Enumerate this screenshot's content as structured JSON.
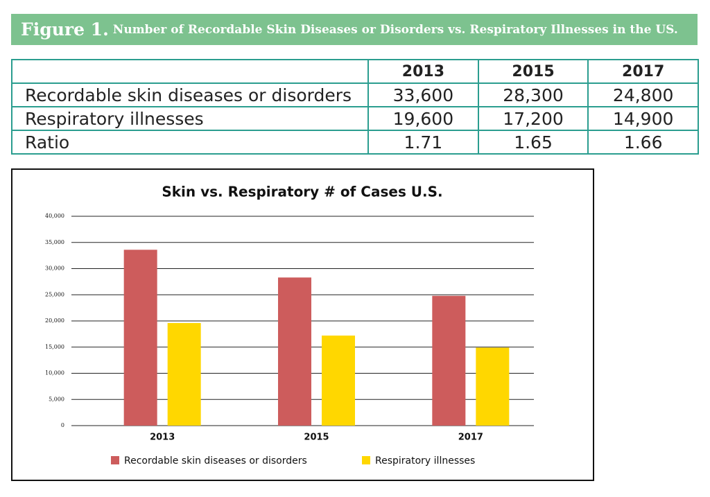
{
  "header": {
    "label": "Figure 1.",
    "title": "Number of Recordable Skin Diseases or Disorders vs. Respiratory Illnesses in the US."
  },
  "table": {
    "columns": [
      "2013",
      "2015",
      "2017"
    ],
    "rows": [
      {
        "label": "Recordable skin diseases or disorders",
        "cells": [
          "33,600",
          "28,300",
          "24,800"
        ]
      },
      {
        "label": "Respiratory illnesses",
        "cells": [
          "19,600",
          "17,200",
          "14,900"
        ]
      },
      {
        "label": "Ratio",
        "cells": [
          "1.71",
          "1.65",
          "1.66"
        ]
      }
    ]
  },
  "chart_data": {
    "type": "bar",
    "title": "Skin vs. Respiratory # of Cases U.S.",
    "categories": [
      "2013",
      "2015",
      "2017"
    ],
    "series": [
      {
        "name": "Recordable skin diseases or disorders",
        "color": "#cd5c5c",
        "values": [
          33600,
          28300,
          24800
        ]
      },
      {
        "name": "Respiratory illnesses",
        "color": "#ffd700",
        "values": [
          19600,
          17200,
          14900
        ]
      }
    ],
    "ylim": [
      0,
      40000
    ],
    "yticks": [
      0,
      {
        "value": 5000,
        "label": "5,000"
      },
      {
        "value": 10000,
        "label": "10,000"
      },
      {
        "value": 15000,
        "label": "15,000"
      },
      {
        "value": 20000,
        "label": "20,000"
      },
      {
        "value": 25000,
        "label": "25,000"
      },
      {
        "value": 30000,
        "label": "30,000"
      },
      {
        "value": 35000,
        "label": "35,000"
      },
      {
        "value": 40000,
        "label": "40,000"
      }
    ],
    "grid": true,
    "legend": "bottom"
  }
}
